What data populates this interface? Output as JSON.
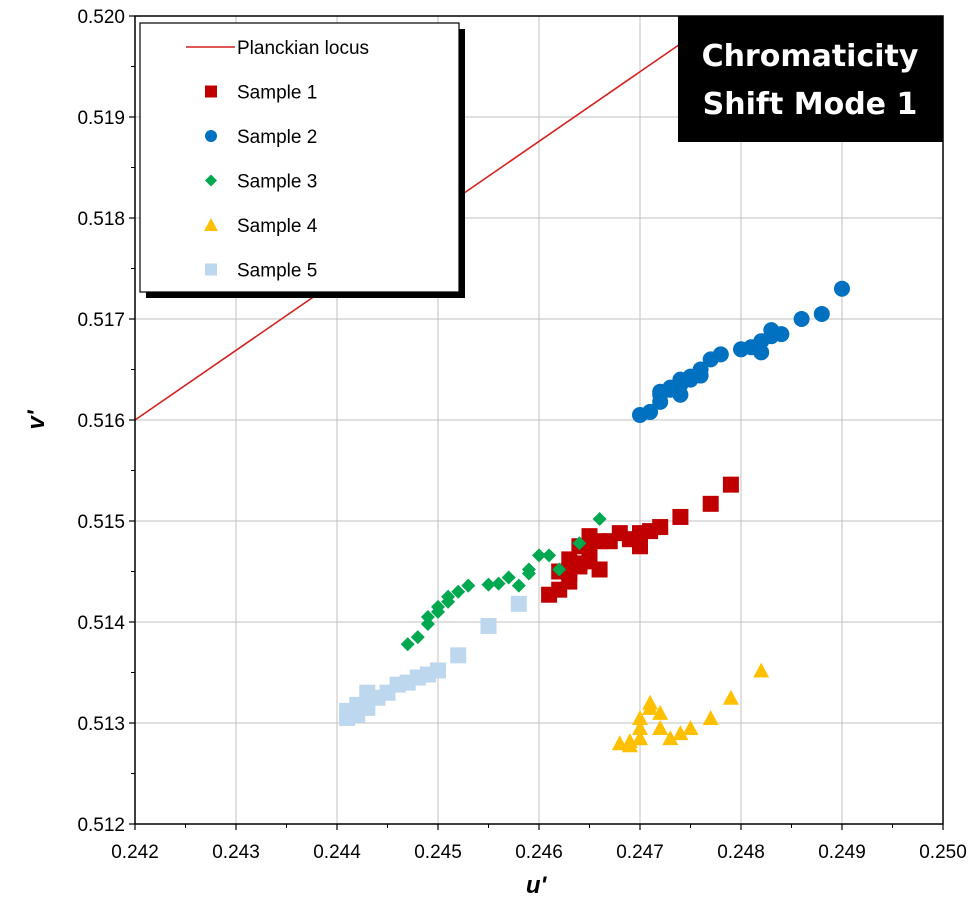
{
  "chart_data": {
    "type": "scatter",
    "title_lines": [
      "Chromaticity",
      "Shift Mode 1"
    ],
    "xlabel": "u'",
    "ylabel": "v'",
    "xlim": [
      0.242,
      0.25
    ],
    "ylim": [
      0.512,
      0.52
    ],
    "x_ticks": [
      "0.242",
      "0.243",
      "0.244",
      "0.245",
      "0.246",
      "0.247",
      "0.248",
      "0.249",
      "0.250"
    ],
    "y_ticks": [
      "0.512",
      "0.513",
      "0.514",
      "0.515",
      "0.516",
      "0.517",
      "0.518",
      "0.519",
      "0.520"
    ],
    "grid": true,
    "legend_position": "top-left",
    "colors": {
      "planckian": "#d42020",
      "sample1": "#c00000",
      "sample2": "#0070c0",
      "sample3": "#00a84f",
      "sample4": "#ffc000",
      "sample5": "#bdd7ee"
    },
    "series": [
      {
        "name": "Planckian locus",
        "kind": "line",
        "color": "#d42020",
        "x": [
          0.242,
          0.2478
        ],
        "y": [
          0.516,
          0.52
        ]
      },
      {
        "name": "Sample 1",
        "marker": "square",
        "color": "#c00000",
        "x": [
          0.2461,
          0.2462,
          0.2463,
          0.2462,
          0.2464,
          0.2463,
          0.2465,
          0.2464,
          0.2466,
          0.2465,
          0.2467,
          0.2469,
          0.2468,
          0.247,
          0.247,
          0.2471,
          0.2472,
          0.2474,
          0.2477,
          0.2479,
          0.2465,
          0.2466,
          0.2463,
          0.2464
        ],
        "y": [
          0.51427,
          0.51432,
          0.5144,
          0.5145,
          0.51455,
          0.51462,
          0.5147,
          0.51475,
          0.5148,
          0.51485,
          0.5148,
          0.51482,
          0.51488,
          0.51475,
          0.51488,
          0.5149,
          0.51494,
          0.51504,
          0.51517,
          0.51536,
          0.5146,
          0.51452,
          0.51448,
          0.51458
        ]
      },
      {
        "name": "Sample 2",
        "marker": "circle",
        "color": "#0070c0",
        "x": [
          0.247,
          0.2471,
          0.2472,
          0.2472,
          0.2473,
          0.2473,
          0.2474,
          0.2474,
          0.2474,
          0.2475,
          0.2476,
          0.2476,
          0.2477,
          0.2478,
          0.248,
          0.2481,
          0.2482,
          0.2483,
          0.2483,
          0.2484,
          0.2482,
          0.2486,
          0.2488,
          0.249,
          0.2472,
          0.2475
        ],
        "y": [
          0.51605,
          0.51608,
          0.51618,
          0.51625,
          0.5163,
          0.51632,
          0.51625,
          0.5164,
          0.51635,
          0.51643,
          0.51644,
          0.5165,
          0.5166,
          0.51665,
          0.5167,
          0.51672,
          0.51678,
          0.51683,
          0.51689,
          0.51685,
          0.51667,
          0.517,
          0.51705,
          0.5173,
          0.51628,
          0.5164
        ]
      },
      {
        "name": "Sample 3",
        "marker": "diamond",
        "color": "#00a84f",
        "x": [
          0.2447,
          0.2448,
          0.2449,
          0.2449,
          0.245,
          0.245,
          0.2451,
          0.2451,
          0.2452,
          0.2453,
          0.2455,
          0.2456,
          0.2457,
          0.2458,
          0.2459,
          0.2459,
          0.246,
          0.2461,
          0.2462,
          0.2464,
          0.2466
        ],
        "y": [
          0.51378,
          0.51385,
          0.51398,
          0.51405,
          0.5141,
          0.51415,
          0.5142,
          0.51425,
          0.5143,
          0.51436,
          0.51437,
          0.51438,
          0.51444,
          0.51436,
          0.51448,
          0.51452,
          0.51466,
          0.51466,
          0.51452,
          0.51478,
          0.51502
        ]
      },
      {
        "name": "Sample 4",
        "marker": "triangle",
        "color": "#ffc000",
        "x": [
          0.2468,
          0.2469,
          0.247,
          0.247,
          0.247,
          0.2471,
          0.2471,
          0.2472,
          0.2472,
          0.2473,
          0.2474,
          0.2475,
          0.2477,
          0.2479,
          0.2482,
          0.247,
          0.2469
        ],
        "y": [
          0.5128,
          0.51278,
          0.51285,
          0.51295,
          0.51305,
          0.51315,
          0.5132,
          0.5131,
          0.51295,
          0.51285,
          0.5129,
          0.51295,
          0.51305,
          0.51325,
          0.51352,
          0.51285,
          0.51282
        ]
      },
      {
        "name": "Sample 5",
        "marker": "square",
        "color": "#bdd7ee",
        "x": [
          0.2441,
          0.2442,
          0.2442,
          0.2443,
          0.2443,
          0.2444,
          0.2445,
          0.2446,
          0.2447,
          0.2448,
          0.2449,
          0.245,
          0.2452,
          0.2455,
          0.2458,
          0.2441,
          0.2443
        ],
        "y": [
          0.51312,
          0.51308,
          0.51318,
          0.5132,
          0.5133,
          0.51325,
          0.5133,
          0.51338,
          0.5134,
          0.51345,
          0.51348,
          0.51352,
          0.51367,
          0.51396,
          0.51418,
          0.51305,
          0.51315
        ]
      }
    ]
  }
}
